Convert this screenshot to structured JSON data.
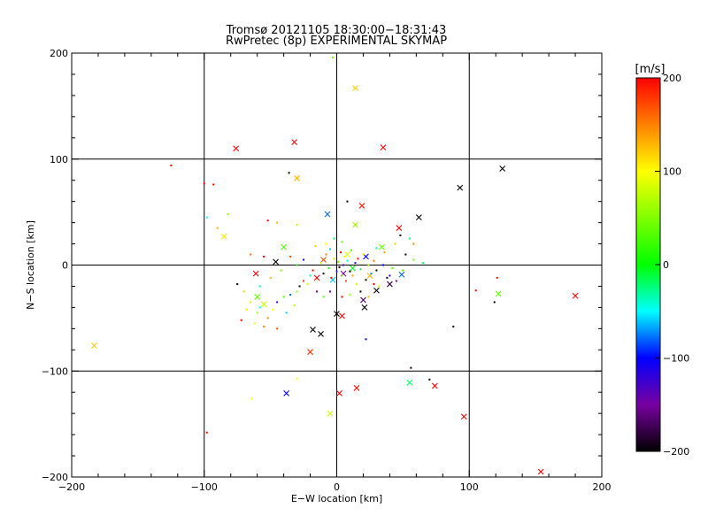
{
  "chart_data": {
    "type": "scatter",
    "title": "Tromsø 20121105 18:30:00−18:31:43",
    "subtitle": "RwPretec (8p) EXPERIMENTAL SKYMAP",
    "xlabel": "E−W location [km]",
    "ylabel": "N−S location [km]",
    "xlim": [
      -200,
      200
    ],
    "ylim": [
      -200,
      200
    ],
    "x_ticks": [
      -200,
      -100,
      0,
      100,
      200
    ],
    "y_ticks": [
      -200,
      -100,
      0,
      100,
      200
    ],
    "x_tick_labels": [
      "−200",
      "−100",
      "0",
      "100",
      "200"
    ],
    "y_tick_labels": [
      "−200",
      "−100",
      "0",
      "100",
      "200"
    ],
    "grid": true,
    "colorbar": {
      "label": "[m/s]",
      "range": [
        -200,
        200
      ],
      "ticks": [
        200,
        100,
        0,
        -100,
        -200
      ],
      "tick_labels": [
        "200",
        "100",
        "0",
        "−100",
        "−200"
      ],
      "stops": [
        {
          "v": -200,
          "color": "#000000"
        },
        {
          "v": -150,
          "color": "#7800a0"
        },
        {
          "v": -100,
          "color": "#0000ff"
        },
        {
          "v": -50,
          "color": "#00ffff"
        },
        {
          "v": 0,
          "color": "#00ff00"
        },
        {
          "v": 100,
          "color": "#ffff00"
        },
        {
          "v": 150,
          "color": "#ff8000"
        },
        {
          "v": 200,
          "color": "#ff0000"
        }
      ]
    },
    "series": [
      {
        "marker": "x",
        "points": [
          {
            "x": 14,
            "y": 167,
            "v": 120
          },
          {
            "x": -76,
            "y": 110,
            "v": 200
          },
          {
            "x": -32,
            "y": 116,
            "v": 200
          },
          {
            "x": 35,
            "y": 111,
            "v": 200
          },
          {
            "x": -30,
            "y": 82,
            "v": 130
          },
          {
            "x": 125,
            "y": 91,
            "v": -200
          },
          {
            "x": 93,
            "y": 73,
            "v": -200
          },
          {
            "x": 62,
            "y": 45,
            "v": -200
          },
          {
            "x": 19,
            "y": 56,
            "v": 190
          },
          {
            "x": -7,
            "y": 48,
            "v": -80
          },
          {
            "x": -85,
            "y": 27,
            "v": 110
          },
          {
            "x": -40,
            "y": 17,
            "v": 30
          },
          {
            "x": 14,
            "y": 38,
            "v": 60
          },
          {
            "x": 47,
            "y": 35,
            "v": 200
          },
          {
            "x": 34,
            "y": 17,
            "v": 40
          },
          {
            "x": -46,
            "y": 3,
            "v": -200
          },
          {
            "x": -61,
            "y": -8,
            "v": 200
          },
          {
            "x": 20,
            "y": -33,
            "v": -170
          },
          {
            "x": 21,
            "y": -40,
            "v": -200
          },
          {
            "x": 40,
            "y": -18,
            "v": -180
          },
          {
            "x": 49,
            "y": -9,
            "v": -80
          },
          {
            "x": -18,
            "y": -61,
            "v": -200
          },
          {
            "x": -12,
            "y": -65,
            "v": -200
          },
          {
            "x": 4,
            "y": -48,
            "v": 200
          },
          {
            "x": 0,
            "y": -46,
            "v": -200
          },
          {
            "x": 180,
            "y": -29,
            "v": 200
          },
          {
            "x": 122,
            "y": -27,
            "v": 40
          },
          {
            "x": -183,
            "y": -76,
            "v": 120
          },
          {
            "x": -20,
            "y": -82,
            "v": 180
          },
          {
            "x": -38,
            "y": -121,
            "v": -100
          },
          {
            "x": 2,
            "y": -121,
            "v": 200
          },
          {
            "x": 15,
            "y": -116,
            "v": 200
          },
          {
            "x": 55,
            "y": -111,
            "v": -20
          },
          {
            "x": 74,
            "y": -114,
            "v": 200
          },
          {
            "x": -5,
            "y": -140,
            "v": 80
          },
          {
            "x": 96,
            "y": -143,
            "v": 200
          },
          {
            "x": 154,
            "y": -195,
            "v": 200
          },
          {
            "x": 5,
            "y": -8,
            "v": -150
          },
          {
            "x": -10,
            "y": 5,
            "v": 170
          },
          {
            "x": 8,
            "y": 10,
            "v": 90
          },
          {
            "x": -3,
            "y": -14,
            "v": -60
          },
          {
            "x": 12,
            "y": -3,
            "v": 0
          },
          {
            "x": -55,
            "y": -37,
            "v": 80
          },
          {
            "x": -60,
            "y": -30,
            "v": 40
          },
          {
            "x": 25,
            "y": -10,
            "v": 130
          },
          {
            "x": 30,
            "y": -24,
            "v": -200
          },
          {
            "x": -15,
            "y": -12,
            "v": 200
          },
          {
            "x": 22,
            "y": 8,
            "v": -100
          }
        ]
      },
      {
        "marker": "dot",
        "points": [
          {
            "x": -125,
            "y": 94,
            "v": 200
          },
          {
            "x": -100,
            "y": 77,
            "v": 200
          },
          {
            "x": -93,
            "y": 76,
            "v": 200
          },
          {
            "x": -36,
            "y": 87,
            "v": -200
          },
          {
            "x": -3,
            "y": 196,
            "v": 40
          },
          {
            "x": 8,
            "y": 60,
            "v": -200
          },
          {
            "x": -82,
            "y": 48,
            "v": 60
          },
          {
            "x": -52,
            "y": 42,
            "v": 200
          },
          {
            "x": -45,
            "y": 40,
            "v": 130
          },
          {
            "x": -30,
            "y": 38,
            "v": 70
          },
          {
            "x": -65,
            "y": 10,
            "v": 160
          },
          {
            "x": -55,
            "y": 8,
            "v": 200
          },
          {
            "x": 44,
            "y": 20,
            "v": 120
          },
          {
            "x": 55,
            "y": 25,
            "v": -20
          },
          {
            "x": 48,
            "y": 28,
            "v": -200
          },
          {
            "x": 58,
            "y": 20,
            "v": 150
          },
          {
            "x": 58,
            "y": 5,
            "v": 40
          },
          {
            "x": 65,
            "y": 2,
            "v": -20
          },
          {
            "x": 30,
            "y": -5,
            "v": -200
          },
          {
            "x": 35,
            "y": 0,
            "v": -100
          },
          {
            "x": 38,
            "y": -12,
            "v": -200
          },
          {
            "x": 42,
            "y": -3,
            "v": 30
          },
          {
            "x": 45,
            "y": -15,
            "v": -150
          },
          {
            "x": 28,
            "y": -18,
            "v": 200
          },
          {
            "x": -75,
            "y": -18,
            "v": -200
          },
          {
            "x": -70,
            "y": -25,
            "v": 120
          },
          {
            "x": -65,
            "y": -35,
            "v": 90
          },
          {
            "x": -60,
            "y": -45,
            "v": 60
          },
          {
            "x": -58,
            "y": -40,
            "v": -50
          },
          {
            "x": -52,
            "y": -50,
            "v": 150
          },
          {
            "x": -48,
            "y": -42,
            "v": 100
          },
          {
            "x": -45,
            "y": -35,
            "v": -130
          },
          {
            "x": -40,
            "y": -30,
            "v": 30
          },
          {
            "x": -35,
            "y": -28,
            "v": -80
          },
          {
            "x": -30,
            "y": -25,
            "v": 60
          },
          {
            "x": -28,
            "y": -20,
            "v": -200
          },
          {
            "x": -25,
            "y": -15,
            "v": 180
          },
          {
            "x": -22,
            "y": -18,
            "v": 110
          },
          {
            "x": -20,
            "y": -10,
            "v": -30
          },
          {
            "x": -18,
            "y": -5,
            "v": 200
          },
          {
            "x": -15,
            "y": -25,
            "v": -160
          },
          {
            "x": -12,
            "y": 2,
            "v": 70
          },
          {
            "x": -10,
            "y": -8,
            "v": -200
          },
          {
            "x": -8,
            "y": 10,
            "v": 150
          },
          {
            "x": -6,
            "y": -3,
            "v": 10
          },
          {
            "x": -5,
            "y": 15,
            "v": -60
          },
          {
            "x": -4,
            "y": -12,
            "v": 190
          },
          {
            "x": -2,
            "y": 6,
            "v": 120
          },
          {
            "x": 0,
            "y": -6,
            "v": -90
          },
          {
            "x": 1,
            "y": 3,
            "v": 40
          },
          {
            "x": 2,
            "y": -2,
            "v": -200
          },
          {
            "x": 3,
            "y": 12,
            "v": 200
          },
          {
            "x": 4,
            "y": -10,
            "v": 60
          },
          {
            "x": 5,
            "y": 0,
            "v": -140
          },
          {
            "x": 6,
            "y": 8,
            "v": 90
          },
          {
            "x": 7,
            "y": -15,
            "v": 170
          },
          {
            "x": 8,
            "y": 4,
            "v": -40
          },
          {
            "x": 10,
            "y": -6,
            "v": -200
          },
          {
            "x": 11,
            "y": 14,
            "v": 30
          },
          {
            "x": 12,
            "y": -10,
            "v": 140
          },
          {
            "x": 14,
            "y": 2,
            "v": -110
          },
          {
            "x": 15,
            "y": -18,
            "v": 80
          },
          {
            "x": 16,
            "y": 6,
            "v": 200
          },
          {
            "x": 18,
            "y": -4,
            "v": -20
          },
          {
            "x": 20,
            "y": 10,
            "v": 110
          },
          {
            "x": 22,
            "y": -14,
            "v": -200
          },
          {
            "x": 24,
            "y": 0,
            "v": 60
          },
          {
            "x": 26,
            "y": -8,
            "v": -70
          },
          {
            "x": 28,
            "y": 4,
            "v": 150
          },
          {
            "x": -8,
            "y": 20,
            "v": 100
          },
          {
            "x": -2,
            "y": 25,
            "v": -20
          },
          {
            "x": 4,
            "y": 22,
            "v": 40
          },
          {
            "x": -16,
            "y": 18,
            "v": 120
          },
          {
            "x": -25,
            "y": 5,
            "v": -100
          },
          {
            "x": -30,
            "y": 0,
            "v": 10
          },
          {
            "x": -35,
            "y": 8,
            "v": 170
          },
          {
            "x": -42,
            "y": -5,
            "v": 50
          },
          {
            "x": -50,
            "y": -12,
            "v": 130
          },
          {
            "x": -58,
            "y": -20,
            "v": -30
          },
          {
            "x": -68,
            "y": -42,
            "v": 110
          },
          {
            "x": -72,
            "y": -52,
            "v": 200
          },
          {
            "x": -62,
            "y": -55,
            "v": 90
          },
          {
            "x": -55,
            "y": -58,
            "v": 150
          },
          {
            "x": -38,
            "y": -45,
            "v": -60
          },
          {
            "x": -32,
            "y": -38,
            "v": 70
          },
          {
            "x": -10,
            "y": -30,
            "v": 30
          },
          {
            "x": -5,
            "y": -25,
            "v": -160
          },
          {
            "x": 4,
            "y": -30,
            "v": 200
          },
          {
            "x": 10,
            "y": -28,
            "v": 60
          },
          {
            "x": 18,
            "y": -25,
            "v": -200
          },
          {
            "x": 24,
            "y": -30,
            "v": 130
          },
          {
            "x": 32,
            "y": -20,
            "v": 80
          },
          {
            "x": 40,
            "y": -10,
            "v": -120
          },
          {
            "x": 50,
            "y": -5,
            "v": 20
          },
          {
            "x": 52,
            "y": 10,
            "v": -200
          },
          {
            "x": 36,
            "y": 12,
            "v": 140
          },
          {
            "x": 30,
            "y": 16,
            "v": -40
          },
          {
            "x": -98,
            "y": -158,
            "v": 200
          },
          {
            "x": -64,
            "y": -126,
            "v": 100
          },
          {
            "x": 88,
            "y": -58,
            "v": -200
          },
          {
            "x": 105,
            "y": -24,
            "v": 200
          },
          {
            "x": 119,
            "y": -35,
            "v": -200
          },
          {
            "x": 121,
            "y": -12,
            "v": 200
          },
          {
            "x": 56,
            "y": -97,
            "v": -200
          },
          {
            "x": 70,
            "y": -108,
            "v": -200
          },
          {
            "x": 22,
            "y": -70,
            "v": -100
          },
          {
            "x": -30,
            "y": -107,
            "v": 100
          },
          {
            "x": -45,
            "y": -60,
            "v": 170
          },
          {
            "x": -90,
            "y": 35,
            "v": 130
          },
          {
            "x": -98,
            "y": 45,
            "v": -50
          }
        ]
      }
    ]
  }
}
